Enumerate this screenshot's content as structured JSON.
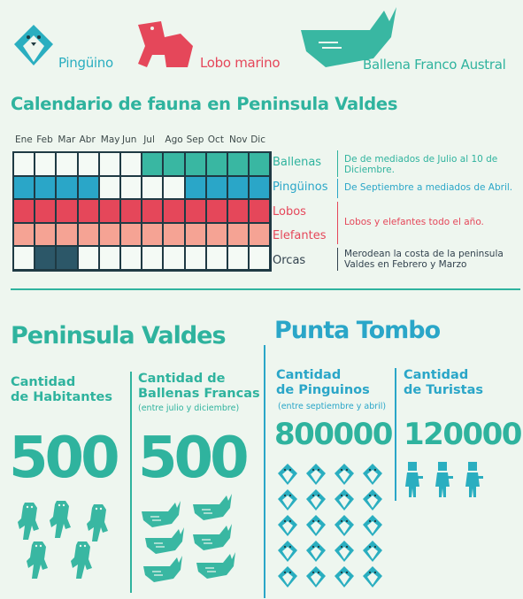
{
  "legend": {
    "penguin": "Pingüino",
    "sealion": "Lobo marino",
    "whale": "Ballena Franco Austral"
  },
  "chart_data": {
    "type": "heatmap",
    "title": "Calendario de fauna en Peninsula Valdes",
    "months": [
      "Ene",
      "Feb",
      "Mar",
      "Abr",
      "May",
      "Jun",
      "Jul",
      "Ago",
      "Sep",
      "Oct",
      "Nov",
      "Dic"
    ],
    "rows": [
      {
        "name": "Ballenas",
        "presence": [
          0,
          0,
          0,
          0,
          0,
          0,
          1,
          1,
          1,
          1,
          1,
          1
        ],
        "color": "#39b7a2",
        "desc": "De de mediados de Julio al 10 de Diciembre."
      },
      {
        "name": "Pingüinos",
        "presence": [
          1,
          1,
          1,
          1,
          0,
          0,
          0,
          0,
          1,
          1,
          1,
          1
        ],
        "color": "#2aa6c8",
        "desc": "De Septiembre a mediados de Abril."
      },
      {
        "name": "Lobos",
        "presence": [
          1,
          1,
          1,
          1,
          1,
          1,
          1,
          1,
          1,
          1,
          1,
          1
        ],
        "color": "#e5475a",
        "desc": "Lobos y elefantes todo el año."
      },
      {
        "name": "Elefantes",
        "presence": [
          1,
          1,
          1,
          1,
          1,
          1,
          1,
          1,
          1,
          1,
          1,
          1
        ],
        "color": "#f5a394",
        "desc": ""
      },
      {
        "name": "Orcas",
        "presence": [
          0,
          1,
          1,
          0,
          0,
          0,
          0,
          0,
          0,
          0,
          0,
          0
        ],
        "color": "#2c5768",
        "desc": "Merodean la costa de la peninsula Valdes en Febrero y Marzo"
      }
    ]
  },
  "valdes": {
    "heading": "Peninsula Valdes",
    "habitantes": {
      "label1": "Cantidad",
      "label2": "de Habitantes",
      "value": "500"
    },
    "ballenas": {
      "label1": "Cantidad de",
      "label2": "Ballenas Francas",
      "sub": "(entre julio y diciembre)",
      "value": "500"
    }
  },
  "tombo": {
    "heading": "Punta Tombo",
    "pinguinos": {
      "label1": "Cantidad",
      "label2": "de Pinguinos",
      "sub": "(entre septiembre y abril)",
      "value": "800000"
    },
    "turistas": {
      "label1": "Cantidad",
      "label2": "de Turistas",
      "value": "120000"
    }
  }
}
